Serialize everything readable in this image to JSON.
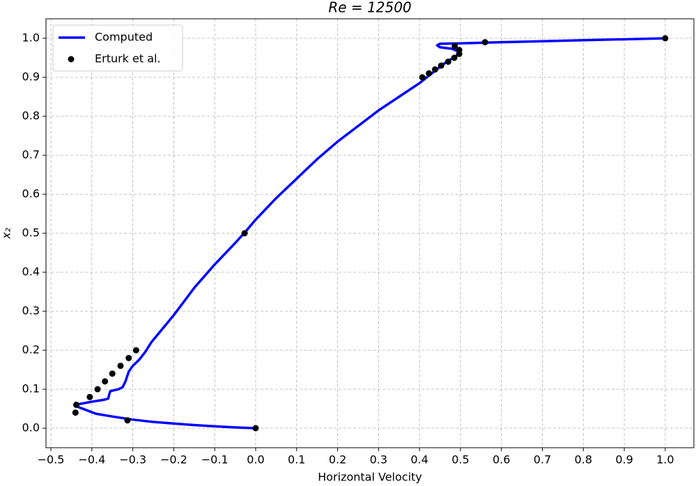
{
  "chart_data": {
    "type": "line",
    "title": "Re = 12500",
    "x_label": "Horizontal Velocity",
    "y_label": "x₂",
    "xlim": [
      -0.512,
      1.07
    ],
    "ylim": [
      -0.05,
      1.05
    ],
    "xticks": [
      {
        "value": -0.5,
        "label": "−0.5"
      },
      {
        "value": -0.4,
        "label": "−0.4"
      },
      {
        "value": -0.3,
        "label": "−0.3"
      },
      {
        "value": -0.2,
        "label": "−0.2"
      },
      {
        "value": -0.1,
        "label": "−0.1"
      },
      {
        "value": 0,
        "label": "0.0"
      },
      0.1,
      0.2,
      0.3,
      0.4,
      0.5,
      0.6,
      0.7,
      0.8,
      0.9,
      {
        "value": 1,
        "label": "1.0"
      }
    ],
    "yticks": [
      {
        "value": 0,
        "label": "0.0"
      },
      0.1,
      0.2,
      0.3,
      0.4,
      0.5,
      0.6,
      0.7,
      0.8,
      0.9,
      {
        "value": 1,
        "label": "1.0"
      }
    ],
    "grid": true,
    "legend": "upper left",
    "series": [
      {
        "name": "Computed",
        "color": "#0000ff",
        "style": "line",
        "x": [
          0,
          -0.05,
          -0.1,
          -0.15,
          -0.2,
          -0.25,
          -0.3,
          -0.35,
          -0.39,
          -0.41,
          -0.43,
          -0.44,
          -0.43,
          -0.4,
          -0.37,
          -0.36,
          -0.358,
          -0.355,
          -0.335,
          -0.325,
          -0.318,
          -0.31,
          -0.3,
          -0.285,
          -0.27,
          -0.255,
          -0.2,
          -0.15,
          -0.1,
          -0.05,
          -0.02,
          0,
          0.05,
          0.1,
          0.15,
          0.2,
          0.25,
          0.3,
          0.35,
          0.4,
          0.43,
          0.46,
          0.49,
          0.497,
          0.48,
          0.45,
          0.443,
          0.45,
          0.5,
          0.6,
          0.8,
          1.0
        ],
        "values": [
          0,
          0.002,
          0.005,
          0.008,
          0.012,
          0.016,
          0.022,
          0.03,
          0.037,
          0.045,
          0.053,
          0.058,
          0.062,
          0.068,
          0.073,
          0.076,
          0.085,
          0.095,
          0.1,
          0.105,
          0.12,
          0.145,
          0.16,
          0.175,
          0.195,
          0.22,
          0.29,
          0.36,
          0.42,
          0.475,
          0.51,
          0.535,
          0.59,
          0.64,
          0.69,
          0.735,
          0.775,
          0.815,
          0.85,
          0.885,
          0.91,
          0.935,
          0.955,
          0.965,
          0.973,
          0.977,
          0.982,
          0.986,
          0.987,
          0.99,
          0.995,
          1.0
        ]
      },
      {
        "name": "Erturk et al.",
        "color": "#000000",
        "style": "points",
        "x": [
          1.0,
          0.56,
          0.497,
          0.497,
          0.486,
          0.485,
          0.47,
          0.453,
          0.438,
          0.423,
          0.407,
          -0.027,
          -0.292,
          -0.31,
          -0.33,
          -0.35,
          -0.368,
          -0.386,
          -0.405,
          -0.438,
          -0.44,
          -0.313,
          0.0
        ],
        "values": [
          1.0,
          0.99,
          0.97,
          0.96,
          0.98,
          0.95,
          0.94,
          0.93,
          0.92,
          0.91,
          0.9,
          0.5,
          0.2,
          0.18,
          0.16,
          0.14,
          0.12,
          0.1,
          0.08,
          0.06,
          0.04,
          0.02,
          0.0
        ]
      }
    ]
  }
}
